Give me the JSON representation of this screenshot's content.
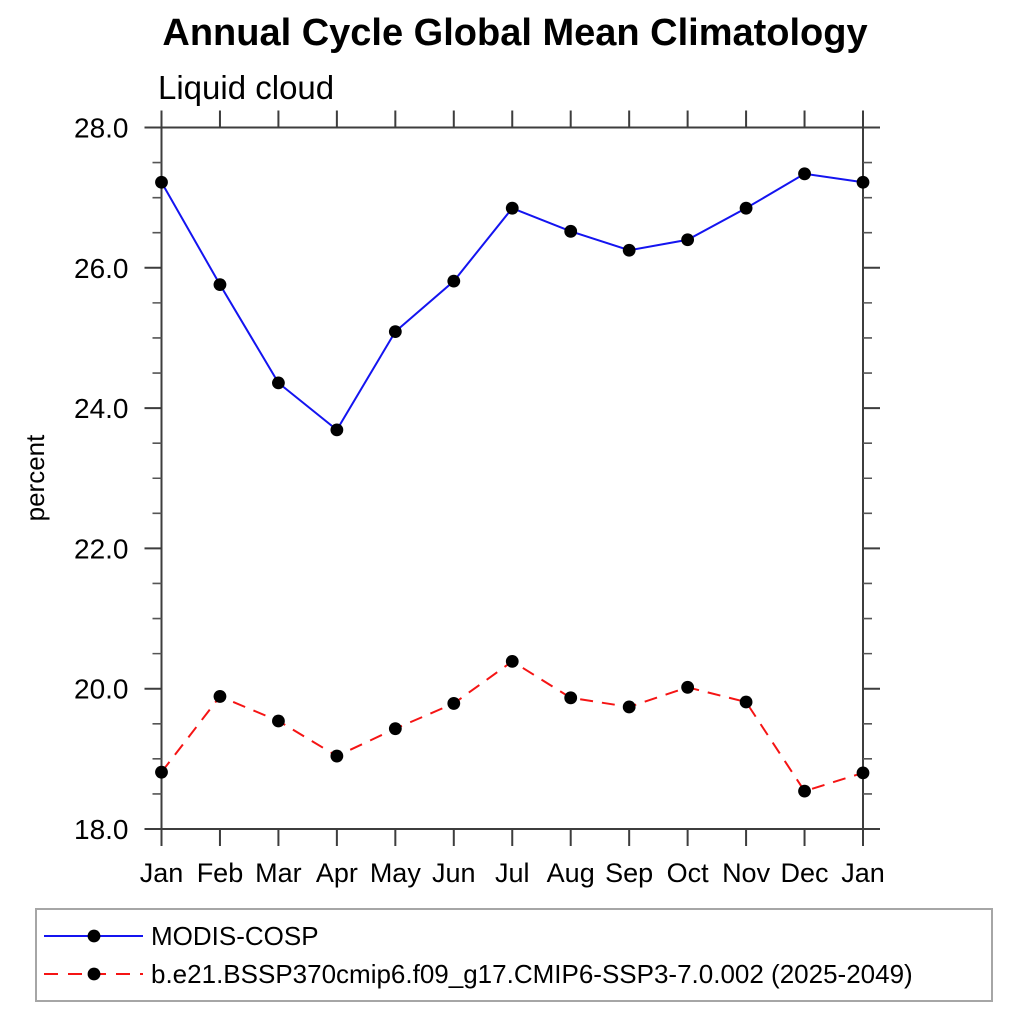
{
  "chart_data": {
    "type": "line",
    "title": "Annual Cycle Global Mean Climatology",
    "subtitle": "Liquid cloud",
    "ylabel": "percent",
    "categories": [
      "Jan",
      "Feb",
      "Mar",
      "Apr",
      "May",
      "Jun",
      "Jul",
      "Aug",
      "Sep",
      "Oct",
      "Nov",
      "Dec",
      "Jan"
    ],
    "ylim": [
      18.0,
      28.0
    ],
    "ytick_values": [
      18.0,
      20.0,
      22.0,
      24.0,
      26.0,
      28.0
    ],
    "ytick_labels": [
      "18.0",
      "20.0",
      "22.0",
      "24.0",
      "26.0",
      "28.0"
    ],
    "minor_tick_step": 0.5,
    "grid": false,
    "legend_position": "bottom-left-box",
    "series": [
      {
        "name": "MODIS-COSP",
        "color": "#1414f0",
        "line_style": "solid",
        "marker": "filled-black-circle",
        "values": [
          27.22,
          25.76,
          24.36,
          23.69,
          25.09,
          25.81,
          26.85,
          26.52,
          26.25,
          26.4,
          26.85,
          27.34,
          27.22
        ]
      },
      {
        "name": "b.e21.BSSP370cmip6.f09_g17.CMIP6-SSP3-7.0.002 (2025-2049)",
        "color": "#f51414",
        "line_style": "dashed",
        "marker": "filled-black-circle",
        "values": [
          18.81,
          19.89,
          19.54,
          19.04,
          19.43,
          19.79,
          20.39,
          19.87,
          19.74,
          20.02,
          19.81,
          18.54,
          18.8
        ]
      }
    ]
  }
}
